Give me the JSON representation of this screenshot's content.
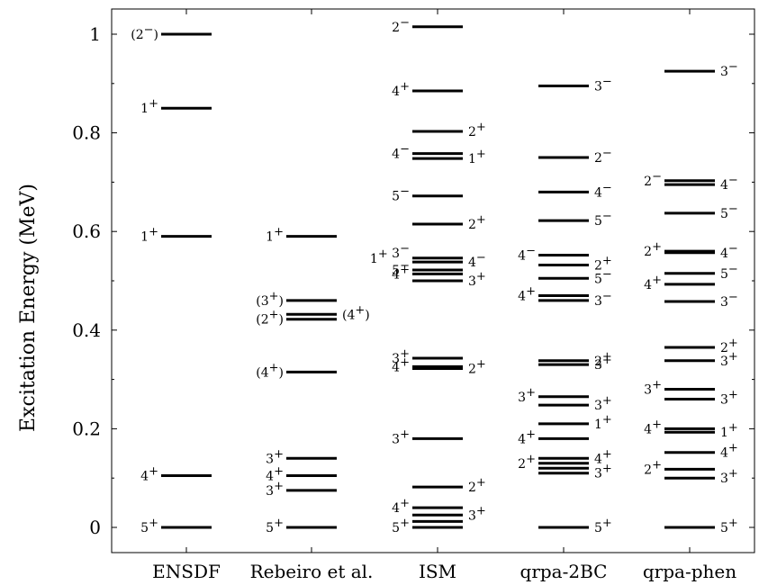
{
  "chart_data": {
    "type": "level_scheme",
    "ylabel": "Excitation Energy (MeV)",
    "ylim": [
      -0.05,
      1.05
    ],
    "yticks": [
      0,
      0.2,
      0.4,
      0.6,
      0.8,
      1
    ],
    "ytick_labels": [
      "0",
      "0.2",
      "0.4",
      "0.6",
      "0.8",
      "1"
    ],
    "grid": false,
    "categories": [
      "ENSDF",
      "Rebeiro et al.",
      "ISM",
      "qrpa-2BC",
      "qrpa-phen"
    ],
    "series": [
      {
        "name": "ENSDF",
        "levels": [
          {
            "energy": 0,
            "label": "5+",
            "side": "left"
          },
          {
            "energy": 0.105,
            "label": "4+",
            "side": "left"
          },
          {
            "energy": 0.59,
            "label": "1+",
            "side": "left"
          },
          {
            "energy": 0.85,
            "label": "1+",
            "side": "left"
          },
          {
            "energy": 1.0,
            "label": "(2−)",
            "side": "left"
          }
        ]
      },
      {
        "name": "Rebeiro et al.",
        "levels": [
          {
            "energy": 0,
            "label": "5+",
            "side": "left"
          },
          {
            "energy": 0.075,
            "label": "3+",
            "side": "left"
          },
          {
            "energy": 0.105,
            "label": "4+",
            "side": "left"
          },
          {
            "energy": 0.14,
            "label": "3+",
            "side": "left"
          },
          {
            "energy": 0.315,
            "label": "(4+)",
            "side": "left"
          },
          {
            "energy": 0.422,
            "label": "(2+)",
            "side": "left"
          },
          {
            "energy": 0.432,
            "label": "(4+)",
            "side": "right"
          },
          {
            "energy": 0.46,
            "label": "(3+)",
            "side": "left"
          },
          {
            "energy": 0.59,
            "label": "1+",
            "side": "left"
          }
        ]
      },
      {
        "name": "ISM",
        "levels": [
          {
            "energy": 0,
            "label": "5+",
            "side": "left"
          },
          {
            "energy": 0.012,
            "label": "",
            "side": "none"
          },
          {
            "energy": 0.025,
            "label": "3+",
            "side": "right"
          },
          {
            "energy": 0.04,
            "label": "4+",
            "side": "left"
          },
          {
            "energy": 0.082,
            "label": "2+",
            "side": "right"
          },
          {
            "energy": 0.18,
            "label": "3+",
            "side": "left"
          },
          {
            "energy": 0.322,
            "label": "2+",
            "side": "right"
          },
          {
            "energy": 0.326,
            "label": "4+",
            "side": "left"
          },
          {
            "energy": 0.343,
            "label": "3+",
            "side": "left"
          },
          {
            "energy": 0.5,
            "label": "3+",
            "side": "right"
          },
          {
            "energy": 0.514,
            "label": "4+",
            "side": "left"
          },
          {
            "energy": 0.522,
            "label": "5−",
            "side": "left"
          },
          {
            "energy": 0.538,
            "label": "4−",
            "side": "right"
          },
          {
            "energy": 0.546,
            "label": "1+ 3−",
            "side": "left"
          },
          {
            "energy": 0.615,
            "label": "2+",
            "side": "right"
          },
          {
            "energy": 0.672,
            "label": "5−",
            "side": "left"
          },
          {
            "energy": 0.748,
            "label": "1+",
            "side": "right"
          },
          {
            "energy": 0.758,
            "label": "4−",
            "side": "left"
          },
          {
            "energy": 0.803,
            "label": "2+",
            "side": "right"
          },
          {
            "energy": 0.885,
            "label": "4+",
            "side": "left"
          },
          {
            "energy": 1.015,
            "label": "2−",
            "side": "left"
          }
        ]
      },
      {
        "name": "qrpa-2BC",
        "levels": [
          {
            "energy": 0,
            "label": "5+",
            "side": "right"
          },
          {
            "energy": 0.11,
            "label": "3+",
            "side": "right"
          },
          {
            "energy": 0.12,
            "label": "",
            "side": "none"
          },
          {
            "energy": 0.13,
            "label": "2+",
            "side": "left"
          },
          {
            "energy": 0.14,
            "label": "4+",
            "side": "right"
          },
          {
            "energy": 0.18,
            "label": "4+",
            "side": "left"
          },
          {
            "energy": 0.21,
            "label": "1+",
            "side": "right"
          },
          {
            "energy": 0.248,
            "label": "3+",
            "side": "right"
          },
          {
            "energy": 0.265,
            "label": "3+",
            "side": "left"
          },
          {
            "energy": 0.33,
            "label": "3+",
            "side": "right"
          },
          {
            "energy": 0.338,
            "label": "2+",
            "side": "right"
          },
          {
            "energy": 0.46,
            "label": "3−",
            "side": "right"
          },
          {
            "energy": 0.47,
            "label": "4+",
            "side": "left"
          },
          {
            "energy": 0.505,
            "label": "5−",
            "side": "right"
          },
          {
            "energy": 0.532,
            "label": "2+",
            "side": "right"
          },
          {
            "energy": 0.552,
            "label": "4−",
            "side": "left"
          },
          {
            "energy": 0.622,
            "label": "5−",
            "side": "right"
          },
          {
            "energy": 0.68,
            "label": "4−",
            "side": "right"
          },
          {
            "energy": 0.75,
            "label": "2−",
            "side": "right"
          },
          {
            "energy": 0.895,
            "label": "3−",
            "side": "right"
          }
        ]
      },
      {
        "name": "qrpa-phen",
        "levels": [
          {
            "energy": 0,
            "label": "5+",
            "side": "right"
          },
          {
            "energy": 0.1,
            "label": "3+",
            "side": "right"
          },
          {
            "energy": 0.118,
            "label": "2+",
            "side": "left"
          },
          {
            "energy": 0.152,
            "label": "4+",
            "side": "right"
          },
          {
            "energy": 0.193,
            "label": "1+",
            "side": "right"
          },
          {
            "energy": 0.2,
            "label": "4+",
            "side": "left"
          },
          {
            "energy": 0.26,
            "label": "3+",
            "side": "right"
          },
          {
            "energy": 0.28,
            "label": "3+",
            "side": "left"
          },
          {
            "energy": 0.338,
            "label": "3+",
            "side": "right"
          },
          {
            "energy": 0.365,
            "label": "2+",
            "side": "right"
          },
          {
            "energy": 0.458,
            "label": "3−",
            "side": "right"
          },
          {
            "energy": 0.493,
            "label": "4+",
            "side": "left"
          },
          {
            "energy": 0.515,
            "label": "5−",
            "side": "right"
          },
          {
            "energy": 0.557,
            "label": "4−",
            "side": "right"
          },
          {
            "energy": 0.56,
            "label": "2+",
            "side": "left"
          },
          {
            "energy": 0.637,
            "label": "5−",
            "side": "right"
          },
          {
            "energy": 0.695,
            "label": "4−",
            "side": "right"
          },
          {
            "energy": 0.703,
            "label": "2−",
            "side": "left"
          },
          {
            "energy": 0.925,
            "label": "3−",
            "side": "right"
          }
        ]
      }
    ]
  }
}
